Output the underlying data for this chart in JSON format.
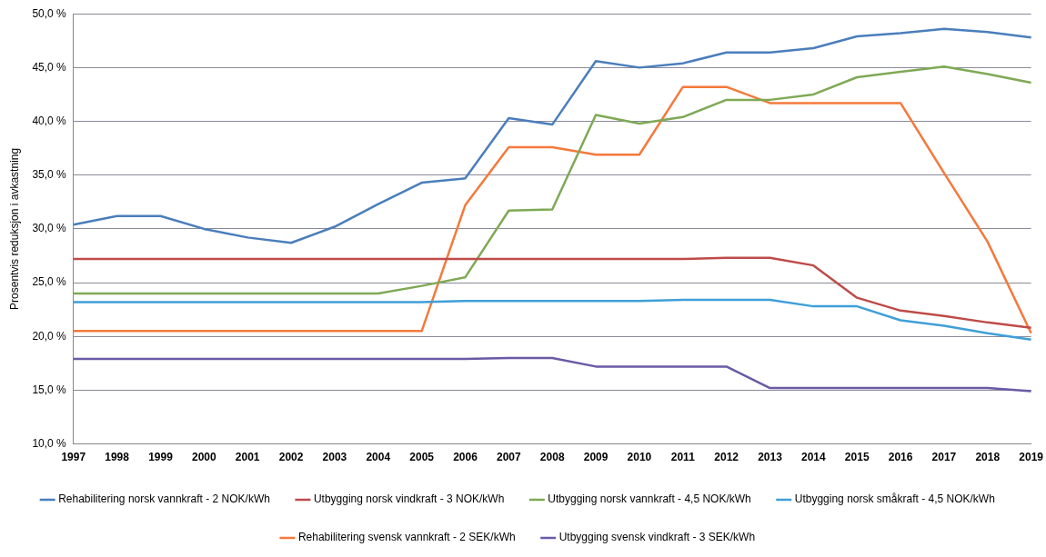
{
  "chart_data": {
    "type": "line",
    "ylabel": "Prosentvis reduksjon i avkastning",
    "categories": [
      "1997",
      "1998",
      "1999",
      "2000",
      "2001",
      "2002",
      "2003",
      "2004",
      "2005",
      "2006",
      "2007",
      "2008",
      "2009",
      "2010",
      "2011",
      "2012",
      "2013",
      "2014",
      "2015",
      "2016",
      "2017",
      "2018",
      "2019"
    ],
    "ylim": [
      10,
      50
    ],
    "yticks": [
      {
        "value": 10,
        "label": "10,0 %"
      },
      {
        "value": 15,
        "label": "15,0 %"
      },
      {
        "value": 20,
        "label": "20,0 %"
      },
      {
        "value": 25,
        "label": "25,0 %"
      },
      {
        "value": 30,
        "label": "30,0 %"
      },
      {
        "value": 35,
        "label": "35,0 %"
      },
      {
        "value": 40,
        "label": "40,0 %"
      },
      {
        "value": 45,
        "label": "45,0 %"
      },
      {
        "value": 50,
        "label": "50,0 %"
      }
    ],
    "grid": "y",
    "legend": "bottom",
    "marker": "none",
    "line_style": "solid",
    "series": [
      {
        "name": "Rehabilitering norsk vannkraft - 2 NOK/kWh",
        "color": "#4a7ebb",
        "values": [
          30.4,
          31.2,
          31.2,
          30.0,
          29.2,
          28.7,
          30.2,
          32.3,
          34.3,
          34.7,
          40.3,
          39.7,
          45.6,
          45.0,
          45.4,
          46.4,
          46.4,
          46.8,
          47.9,
          48.2,
          48.6,
          48.3,
          47.8
        ]
      },
      {
        "name": "Utbygging norsk vindkraft - 3 NOK/kWh",
        "color": "#be4b48",
        "values": [
          27.2,
          27.2,
          27.2,
          27.2,
          27.2,
          27.2,
          27.2,
          27.2,
          27.2,
          27.2,
          27.2,
          27.2,
          27.2,
          27.2,
          27.2,
          27.3,
          27.3,
          26.6,
          23.6,
          22.4,
          21.9,
          21.3,
          20.8
        ]
      },
      {
        "name": "Utbygging norsk vannkraft - 4,5 NOK/kWh",
        "color": "#7fa955",
        "values": [
          24.0,
          24.0,
          24.0,
          24.0,
          24.0,
          24.0,
          24.0,
          24.0,
          24.7,
          25.5,
          31.7,
          31.8,
          40.6,
          39.8,
          40.4,
          42.0,
          42.0,
          42.5,
          44.1,
          44.6,
          45.1,
          44.4,
          43.6
        ]
      },
      {
        "name": "Utbygging norsk småkraft - 4,5 NOK/kWh",
        "color": "#3f9fd8",
        "values": [
          23.2,
          23.2,
          23.2,
          23.2,
          23.2,
          23.2,
          23.2,
          23.2,
          23.2,
          23.3,
          23.3,
          23.3,
          23.3,
          23.3,
          23.4,
          23.4,
          23.4,
          22.8,
          22.8,
          21.5,
          21.0,
          20.3,
          19.7
        ]
      },
      {
        "name": "Rehabilitering svensk vannkraft - 2 SEK/kWh",
        "color": "#f4793b",
        "values": [
          20.5,
          20.5,
          20.5,
          20.5,
          20.5,
          20.5,
          20.5,
          20.5,
          20.5,
          32.2,
          37.6,
          37.6,
          36.9,
          36.9,
          43.2,
          43.2,
          41.7,
          41.7,
          41.7,
          41.7,
          35.2,
          28.8,
          20.3
        ]
      },
      {
        "name": "Utbygging svensk vindkraft - 3 SEK/kWh",
        "color": "#6a5aa5",
        "values": [
          17.9,
          17.9,
          17.9,
          17.9,
          17.9,
          17.9,
          17.9,
          17.9,
          17.9,
          17.9,
          18.0,
          18.0,
          17.2,
          17.2,
          17.2,
          17.2,
          15.2,
          15.2,
          15.2,
          15.2,
          15.2,
          15.2,
          14.9
        ]
      }
    ]
  }
}
